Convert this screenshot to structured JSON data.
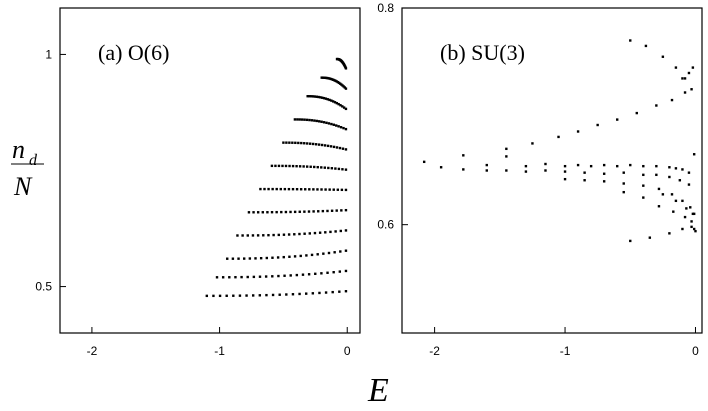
{
  "chart_data": [
    {
      "type": "scatter",
      "panel_label": "(a)  O(6)",
      "xlim": [
        -2.25,
        0.1
      ],
      "ylim": [
        0.4,
        1.1
      ],
      "xticks": [
        -2,
        -1,
        0
      ],
      "xtick_labels": [
        "-2",
        "-1",
        "0"
      ],
      "yticks": [
        0.5,
        1
      ],
      "ytick_labels": [
        "0.5",
        "1"
      ],
      "ytick_side": "left",
      "grid": false,
      "series": [
        {
          "family_count": 12,
          "points_per_family": 22,
          "family_start_E": [
            -1.1,
            -1.02,
            -0.94,
            -0.86,
            -0.77,
            -0.68,
            -0.59,
            -0.5,
            -0.41,
            -0.31,
            -0.2,
            -0.08
          ],
          "family_start_nd_over_N": [
            0.48,
            0.52,
            0.56,
            0.61,
            0.66,
            0.71,
            0.76,
            0.81,
            0.86,
            0.91,
            0.95,
            0.99
          ],
          "common_end_E": -0.01,
          "common_end_nd_over_N": [
            0.49,
            0.97
          ]
        }
      ]
    },
    {
      "type": "scatter",
      "panel_label": "(b)  SU(3)",
      "xlim": [
        -2.25,
        0.05
      ],
      "ylim": [
        0.5,
        0.8
      ],
      "xticks": [
        -2,
        -1,
        0
      ],
      "xtick_labels": [
        "-2",
        "-1",
        "0"
      ],
      "yticks": [
        0.6,
        0.8
      ],
      "ytick_labels": [
        "0.6",
        "0.8"
      ],
      "ytick_side": "left-outside",
      "grid": false,
      "series": [
        {
          "x": [
            -2.08,
            -1.95,
            -1.78,
            -1.6,
            -1.45,
            -1.3,
            -1.15,
            -1.0,
            -0.9,
            -0.8,
            -0.7,
            -0.6,
            -0.5,
            -0.4,
            -0.3,
            -0.2,
            -0.15,
            -0.1,
            -0.05,
            -1.78,
            -1.6,
            -1.45,
            -1.3,
            -1.15,
            -1.0,
            -0.85,
            -0.7,
            -0.55,
            -0.4,
            -0.3,
            -0.2,
            -0.12,
            -0.05,
            -1.45,
            -1.25,
            -1.05,
            -0.9,
            -0.75,
            -0.6,
            -0.45,
            -0.3,
            -0.18,
            -0.08,
            -0.25,
            -0.15,
            -0.07,
            -0.02,
            -1.0,
            -0.85,
            -0.7,
            -0.55,
            -0.4,
            -0.28,
            -0.18,
            -0.1,
            -0.04,
            -0.01,
            -0.55,
            -0.4,
            -0.28,
            -0.17,
            -0.08,
            -0.03,
            -0.01,
            -0.5,
            -0.35,
            -0.2,
            -0.1,
            -0.03,
            -0.0,
            -0.1,
            -0.05,
            -0.02,
            -0.01
          ],
          "y": [
            0.658,
            0.653,
            0.664,
            0.655,
            0.663,
            0.654,
            0.656,
            0.654,
            0.655,
            0.654,
            0.655,
            0.654,
            0.655,
            0.654,
            0.654,
            0.653,
            0.652,
            0.651,
            0.648,
            0.651,
            0.65,
            0.65,
            0.649,
            0.65,
            0.649,
            0.648,
            0.647,
            0.648,
            0.646,
            0.646,
            0.644,
            0.641,
            0.637,
            0.67,
            0.675,
            0.681,
            0.686,
            0.692,
            0.697,
            0.703,
            0.71,
            0.715,
            0.722,
            0.628,
            0.622,
            0.615,
            0.61,
            0.642,
            0.641,
            0.64,
            0.638,
            0.636,
            0.633,
            0.628,
            0.622,
            0.616,
            0.61,
            0.63,
            0.625,
            0.617,
            0.612,
            0.607,
            0.603,
            0.596,
            0.585,
            0.588,
            0.592,
            0.596,
            0.598,
            0.594,
            0.735,
            0.74,
            0.745,
            0.665
          ]
        },
        {
          "x": [
            -0.5,
            -0.38,
            -0.25,
            -0.15,
            -0.08,
            -0.03
          ],
          "y": [
            0.77,
            0.765,
            0.755,
            0.745,
            0.735,
            0.725
          ]
        }
      ]
    }
  ],
  "shared_axes": {
    "xlabel": "E",
    "ylabel_numerator": "n",
    "ylabel_subscript": "d",
    "ylabel_denominator": "N"
  }
}
